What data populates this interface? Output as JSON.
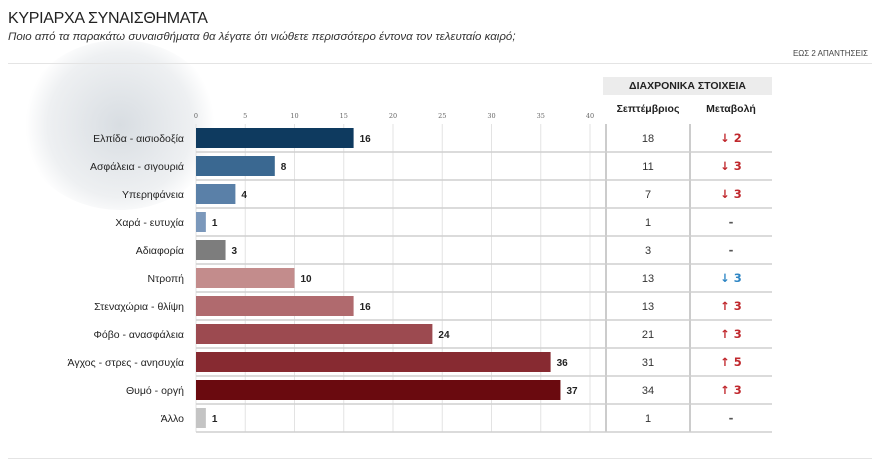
{
  "header": {
    "title": "ΚΥΡΙΑΡΧΑ ΣΥΝΑΙΣΘΗΜΑΤΑ",
    "subtitle": "Ποιο από τα παρακάτω συναισθήματα θα λέγατε ότι νιώθετε περισσότερο έντονα τον τελευταίο καιρό;",
    "note": "ΕΩΣ 2 ΑΠΑΝΤΗΣΕΙΣ"
  },
  "chart_data": {
    "type": "bar",
    "orientation": "horizontal",
    "xlim": [
      0,
      40
    ],
    "ticks": [
      0,
      5,
      10,
      15,
      20,
      25,
      30,
      35,
      40
    ],
    "grid": true,
    "categories": [
      "Ελπίδα - αισιοδοξία",
      "Ασφάλεια - σιγουριά",
      "Υπερηφάνεια",
      "Χαρά - ευτυχία",
      "Αδιαφορία",
      "Ντροπή",
      "Στεναχώρια - θλίψη",
      "Φόβο - ανασφάλεια",
      "Άγχος - στρες - ανησυχία",
      "Θυμό - οργή",
      "Άλλο"
    ],
    "values": [
      16,
      8,
      4,
      1,
      3,
      10,
      16,
      24,
      36,
      37,
      1
    ],
    "colors": [
      "#0e3a5f",
      "#3a6891",
      "#5a80a8",
      "#7b98bb",
      "#7d7d7d",
      "#c38c8c",
      "#b06a6e",
      "#9c4a50",
      "#872a31",
      "#6a0a0f",
      "#c4c4c4"
    ]
  },
  "table": {
    "title": "ΔΙΑΧΡΟΝΙΚΑ ΣΤΟΙΧΕΙΑ",
    "columns": [
      "Σεπτέμβριος",
      "Μεταβολή"
    ],
    "september": [
      "18",
      "11",
      "7",
      "1",
      "3",
      "13",
      "13",
      "21",
      "31",
      "34",
      "1"
    ],
    "change": [
      {
        "dir": "down",
        "value": "2",
        "color": "#c0282d"
      },
      {
        "dir": "down",
        "value": "3",
        "color": "#c0282d"
      },
      {
        "dir": "down",
        "value": "3",
        "color": "#c0282d"
      },
      {
        "dir": "none",
        "value": "-",
        "color": "#555555"
      },
      {
        "dir": "none",
        "value": "-",
        "color": "#555555"
      },
      {
        "dir": "down",
        "value": "3",
        "color": "#2f86c4"
      },
      {
        "dir": "up",
        "value": "3",
        "color": "#c0282d"
      },
      {
        "dir": "up",
        "value": "3",
        "color": "#c0282d"
      },
      {
        "dir": "up",
        "value": "5",
        "color": "#c0282d"
      },
      {
        "dir": "up",
        "value": "3",
        "color": "#c0282d"
      },
      {
        "dir": "none",
        "value": "-",
        "color": "#555555"
      }
    ]
  }
}
